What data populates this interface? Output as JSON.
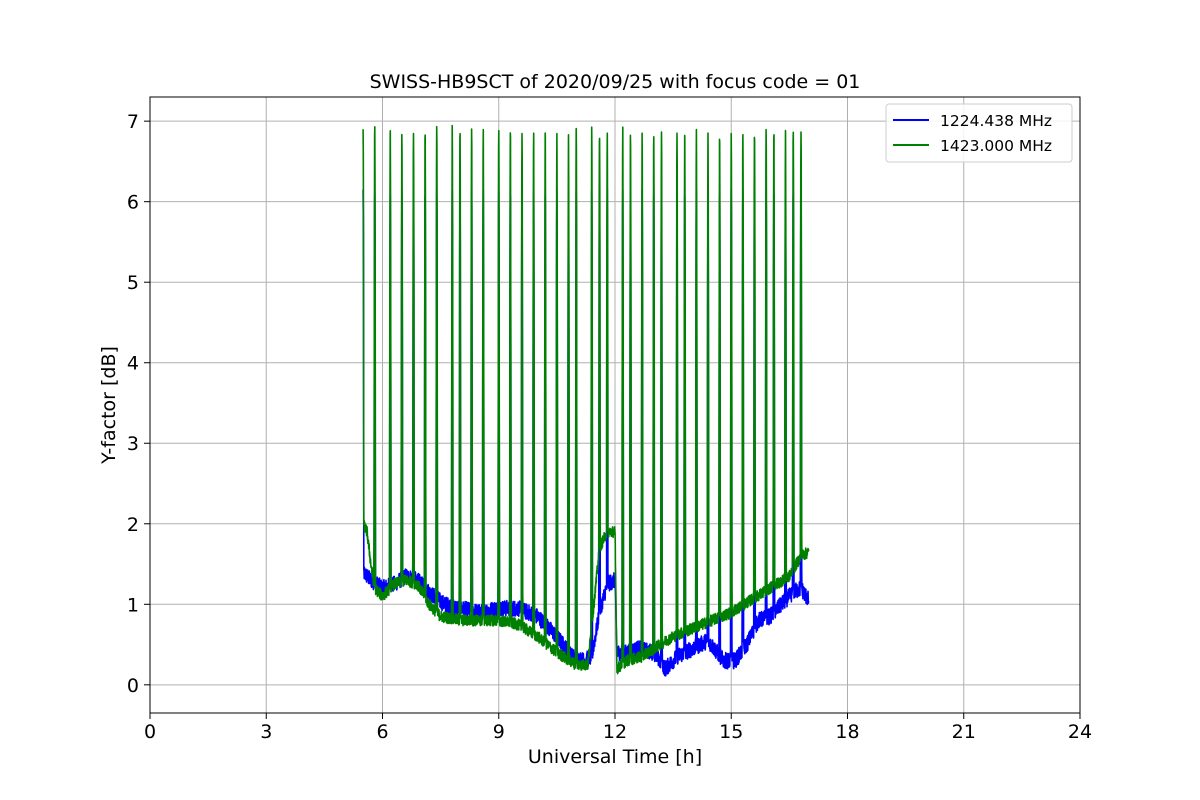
{
  "chart_data": {
    "type": "line",
    "title": "SWISS-HB9SCT of 2020/09/25 with focus code = 01",
    "xlabel": "Universal Time [h]",
    "ylabel": "Y-factor [dB]",
    "xlim": [
      0,
      24
    ],
    "ylim": [
      -0.35,
      7.3
    ],
    "xticks": [
      0,
      3,
      6,
      9,
      12,
      15,
      18,
      21,
      24
    ],
    "yticks": [
      0,
      1,
      2,
      3,
      4,
      5,
      6,
      7
    ],
    "grid": true,
    "legend_position": "top-right",
    "series": [
      {
        "name": "1224.438 MHz",
        "color": "#0000ff",
        "baseline_x": [
          5.5,
          5.7,
          6.0,
          6.3,
          6.6,
          6.9,
          7.2,
          7.6,
          8.0,
          8.5,
          9.0,
          9.5,
          10.0,
          10.5,
          10.9,
          11.2,
          11.4,
          11.6,
          11.8,
          12.0,
          12.05,
          12.3,
          12.6,
          13.0,
          13.3,
          13.6,
          14.0,
          14.4,
          14.8,
          15.1,
          15.4,
          15.7,
          16.0,
          16.3,
          16.6,
          16.8,
          17.0
        ],
        "baseline_y": [
          1.4,
          1.3,
          1.2,
          1.25,
          1.35,
          1.3,
          1.15,
          1.0,
          0.95,
          0.9,
          0.95,
          0.95,
          0.85,
          0.6,
          0.35,
          0.3,
          0.35,
          0.9,
          1.25,
          1.3,
          0.4,
          0.4,
          0.45,
          0.4,
          0.2,
          0.35,
          0.45,
          0.55,
          0.3,
          0.3,
          0.5,
          0.8,
          0.85,
          1.0,
          1.15,
          1.2,
          1.05
        ],
        "noise": 0.1,
        "spike_peak": 6.15
      },
      {
        "name": "1423.000 MHz",
        "color": "#008000",
        "baseline_x": [
          5.5,
          5.6,
          5.7,
          5.8,
          6.0,
          6.3,
          6.6,
          6.9,
          7.2,
          7.5,
          8.0,
          8.5,
          9.0,
          9.5,
          10.0,
          10.5,
          11.0,
          11.3,
          11.6,
          11.8,
          12.0,
          12.05,
          12.3,
          12.7,
          13.0,
          13.5,
          14.0,
          14.5,
          15.0,
          15.5,
          16.0,
          16.5,
          16.8,
          17.0
        ],
        "baseline_y": [
          2.0,
          1.9,
          1.5,
          1.2,
          1.1,
          1.25,
          1.3,
          1.25,
          1.0,
          0.85,
          0.8,
          0.8,
          0.8,
          0.75,
          0.6,
          0.4,
          0.25,
          0.25,
          1.7,
          1.9,
          1.9,
          0.2,
          0.3,
          0.35,
          0.45,
          0.6,
          0.7,
          0.8,
          0.9,
          1.05,
          1.2,
          1.35,
          1.6,
          1.65
        ],
        "noise": 0.07,
        "spike_times": [
          5.5,
          5.8,
          6.2,
          6.5,
          6.8,
          7.1,
          7.4,
          7.8,
          8.0,
          8.3,
          8.6,
          9.0,
          9.3,
          9.6,
          9.9,
          10.2,
          10.5,
          10.8,
          11.0,
          11.4,
          11.6,
          11.8,
          12.2,
          12.4,
          12.7,
          13.0,
          13.2,
          13.6,
          13.8,
          14.1,
          14.4,
          14.7,
          15.0,
          15.3,
          15.6,
          15.9,
          16.1,
          16.4,
          16.6,
          16.8
        ],
        "spike_peaks": [
          6.9,
          6.97,
          6.95,
          6.85,
          6.85,
          6.9,
          6.95,
          6.95,
          6.92,
          6.92,
          6.9,
          6.9,
          6.93,
          6.85,
          6.87,
          6.93,
          6.85,
          6.85,
          6.93,
          6.93,
          6.85,
          6.85,
          6.93,
          6.87,
          6.85,
          6.85,
          6.87,
          6.85,
          6.9,
          6.9,
          6.87,
          6.85,
          6.85,
          6.85,
          6.87,
          6.9,
          6.9,
          6.9,
          6.9,
          6.87
        ]
      }
    ]
  }
}
